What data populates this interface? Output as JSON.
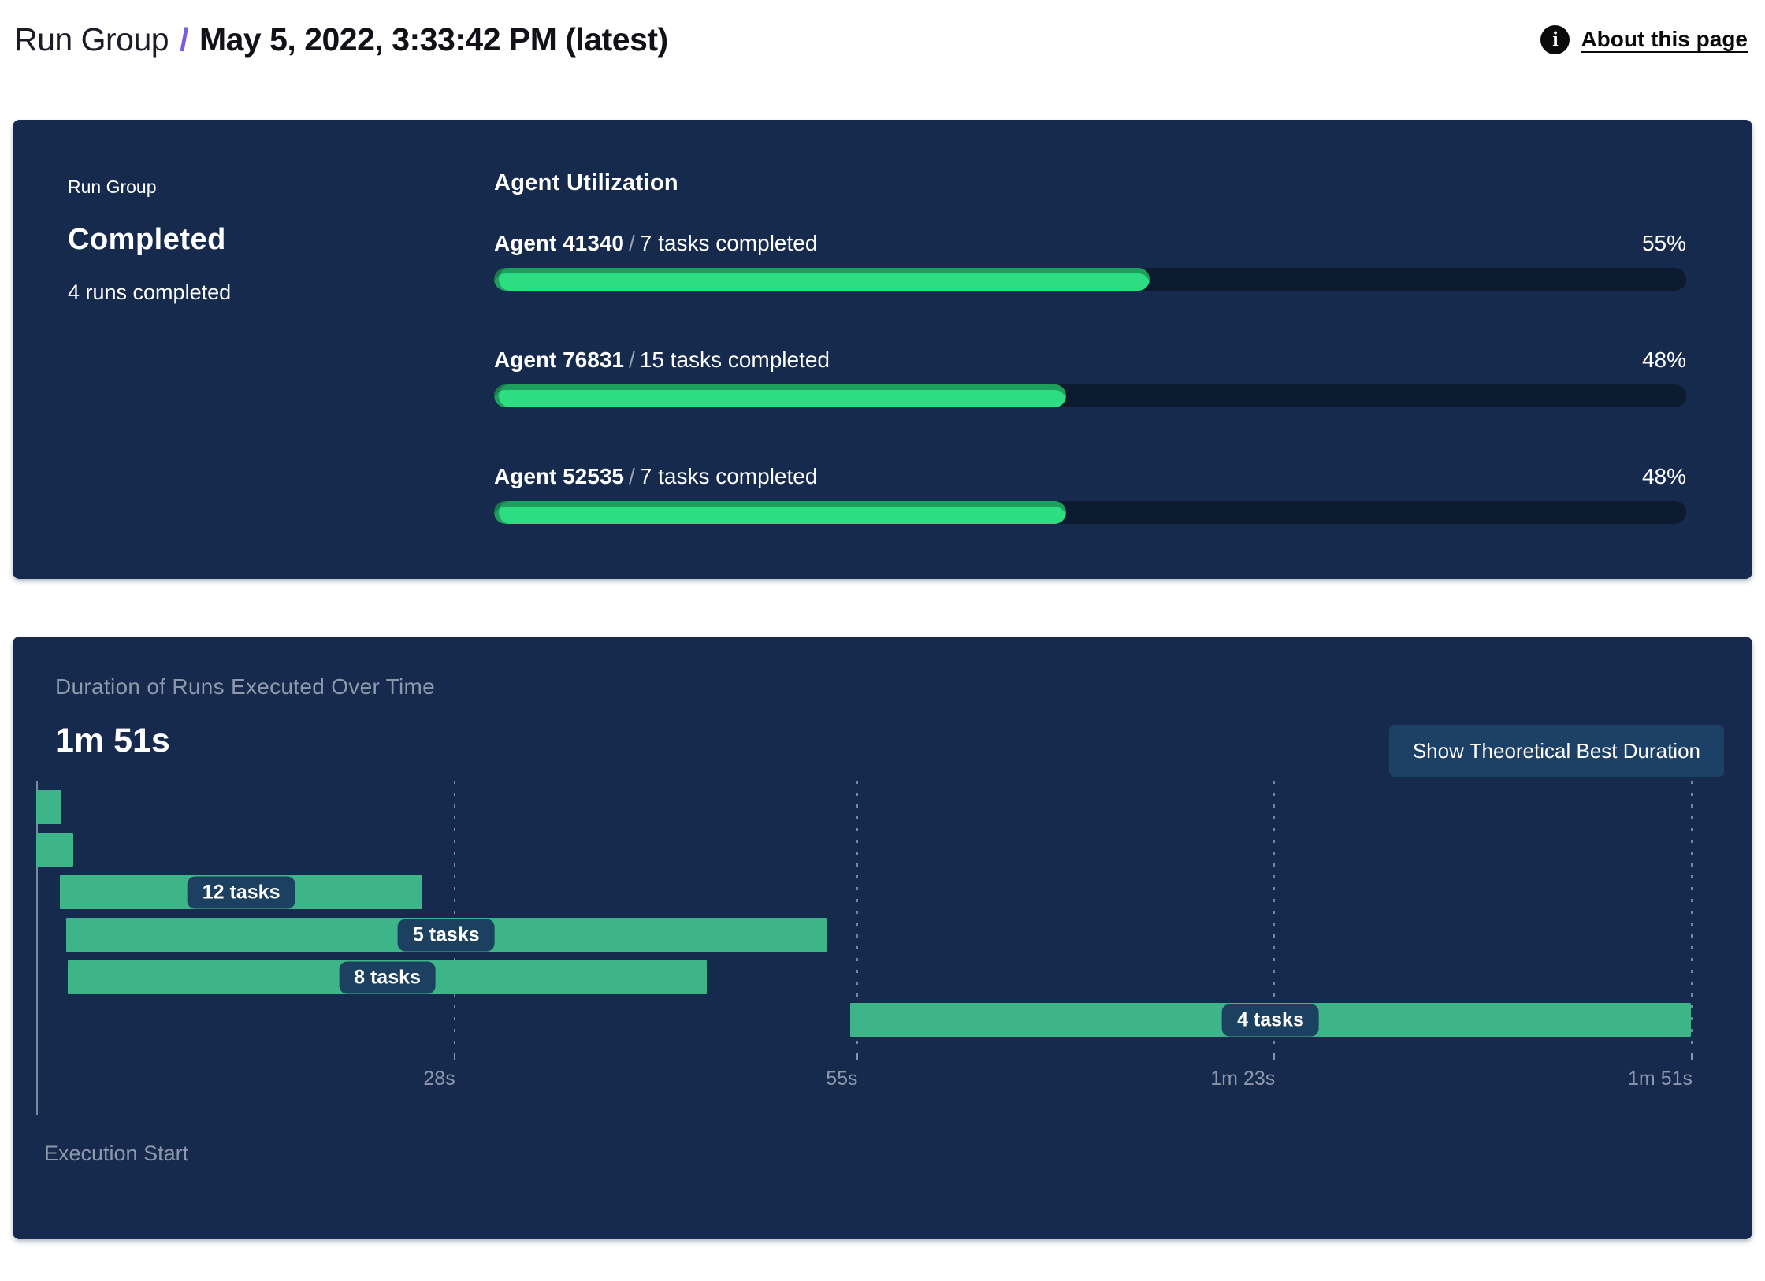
{
  "header": {
    "breadcrumb_root": "Run Group",
    "separator": "/",
    "title": "May 5, 2022, 3:33:42 PM (latest)",
    "info_glyph": "i",
    "about_link": "About this page"
  },
  "summary": {
    "label": "Run Group",
    "status": "Completed",
    "subtext": "4 runs completed"
  },
  "agent_utilization": {
    "title": "Agent Utilization",
    "separator": "/",
    "agents": [
      {
        "name": "Agent 41340",
        "tasks": "7 tasks completed",
        "percent": 55,
        "percent_label": "55%"
      },
      {
        "name": "Agent 76831",
        "tasks": "15 tasks completed",
        "percent": 48,
        "percent_label": "48%"
      },
      {
        "name": "Agent 52535",
        "tasks": "7 tasks completed",
        "percent": 48,
        "percent_label": "48%"
      }
    ]
  },
  "duration_panel": {
    "subtitle": "Duration of Runs Executed Over Time",
    "total_duration": "1m 51s",
    "button_label": "Show Theoretical Best Duration",
    "axis_label": "Execution Start"
  },
  "chart_data": {
    "type": "gantt",
    "title": "Duration of Runs Executed Over Time",
    "total_duration_label": "1m 51s",
    "total_seconds": 111,
    "x_ticks": [
      {
        "label": "28s",
        "seconds": 28
      },
      {
        "label": "55s",
        "seconds": 55
      },
      {
        "label": "1m 23s",
        "seconds": 83
      },
      {
        "label": "1m 51s",
        "seconds": 111
      }
    ],
    "xlabel": "Execution Start",
    "runs": [
      {
        "start_s": 0,
        "end_s": 1.7,
        "tasks": null,
        "label": ""
      },
      {
        "start_s": 0,
        "end_s": 2.5,
        "tasks": null,
        "label": ""
      },
      {
        "start_s": 1.6,
        "end_s": 25.9,
        "tasks": 12,
        "label": "12 tasks"
      },
      {
        "start_s": 2.0,
        "end_s": 53.0,
        "tasks": 5,
        "label": "5 tasks"
      },
      {
        "start_s": 2.1,
        "end_s": 45.0,
        "tasks": 8,
        "label": "8 tasks"
      },
      {
        "start_s": 54.6,
        "end_s": 111,
        "tasks": 4,
        "label": "4 tasks"
      }
    ],
    "colors": {
      "page_bg": "#ffffff",
      "panel_bg": "#162a4d",
      "accent_purple": "#7b5ce5",
      "track_bg": "#0d1b30",
      "utilization_fill": "#2ddd82",
      "utilization_fill_shade": "#1f8f58",
      "gantt_bar": "#3eb489",
      "badge_bg": "#1c4060",
      "button_bg": "#1d4066",
      "muted_text": "#8c99ab"
    }
  }
}
